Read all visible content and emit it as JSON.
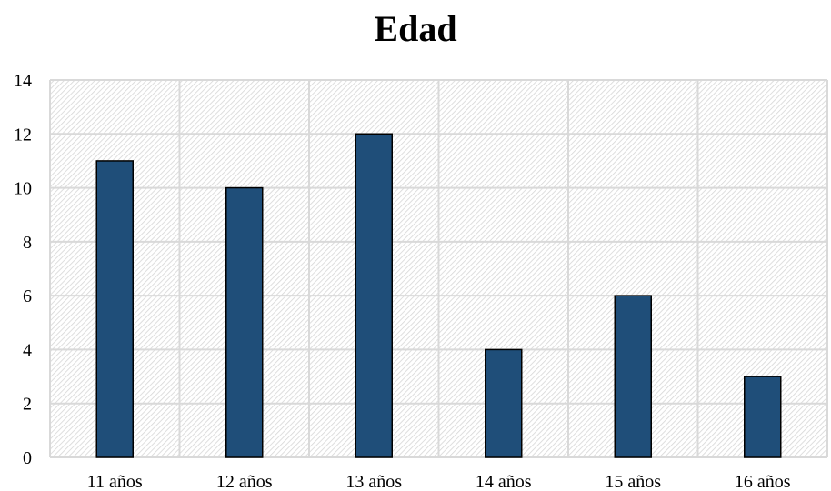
{
  "chart_data": {
    "type": "bar",
    "title": "Edad",
    "xlabel": "",
    "ylabel": "",
    "categories": [
      "11 años",
      "12 años",
      "13 años",
      "14 años",
      "15 años",
      "16 años"
    ],
    "values": [
      11,
      10,
      12,
      4,
      6,
      3
    ],
    "ylim": [
      0,
      14
    ],
    "yticks": [
      0,
      2,
      4,
      6,
      8,
      10,
      12,
      14
    ],
    "grid": true,
    "bar_color": "#1f4e79",
    "bar_border_color": "#000000",
    "plot_background": "hatched light gray"
  }
}
